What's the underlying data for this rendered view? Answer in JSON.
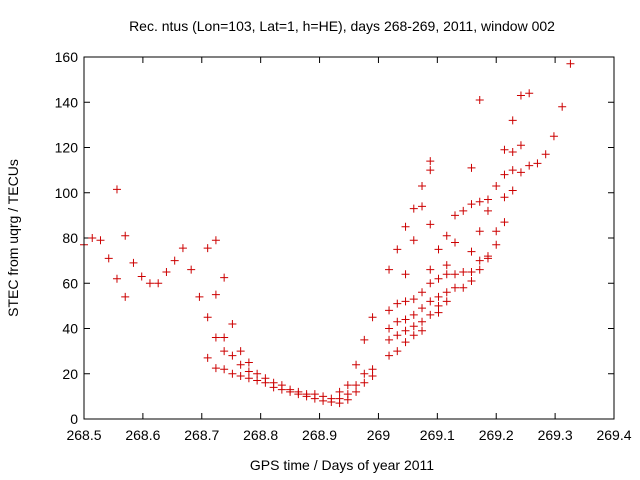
{
  "chart_data": {
    "type": "scatter",
    "title": "Rec. ntus (Lon=103, Lat=1, h=HE), days 268-269, 2011, window 002",
    "xlabel": "GPS time / Days of year 2011",
    "ylabel": "STEC from uqrg / TECUs",
    "xlim": [
      268.5,
      269.4
    ],
    "ylim": [
      0,
      160
    ],
    "xticks": [
      "268.5",
      "268.6",
      "268.7",
      "268.8",
      "268.9",
      "269",
      "269.1",
      "269.2",
      "269.3",
      "269.4"
    ],
    "yticks": [
      "0",
      "20",
      "40",
      "60",
      "80",
      "100",
      "120",
      "140",
      "160"
    ],
    "grid": false,
    "legend": "none",
    "marker": "+",
    "color": "#cc0000",
    "points": [
      [
        268.5,
        77.0
      ],
      [
        268.514,
        80.0
      ],
      [
        268.528,
        79.0
      ],
      [
        268.542,
        71.0
      ],
      [
        268.556,
        101.5
      ],
      [
        268.556,
        62.0
      ],
      [
        268.57,
        81.0
      ],
      [
        268.57,
        54.0
      ],
      [
        268.584,
        69.0
      ],
      [
        268.598,
        63.0
      ],
      [
        268.612,
        60.0
      ],
      [
        268.626,
        60.0
      ],
      [
        268.64,
        65.0
      ],
      [
        268.654,
        70.0
      ],
      [
        268.668,
        75.5
      ],
      [
        268.682,
        66.0
      ],
      [
        268.696,
        54.0
      ],
      [
        268.71,
        75.5
      ],
      [
        268.71,
        45.0
      ],
      [
        268.71,
        27.0
      ],
      [
        268.724,
        79.0
      ],
      [
        268.724,
        55.0
      ],
      [
        268.724,
        36.0
      ],
      [
        268.724,
        22.5
      ],
      [
        268.738,
        62.5
      ],
      [
        268.738,
        36.0
      ],
      [
        268.738,
        30.0
      ],
      [
        268.738,
        22.0
      ],
      [
        268.752,
        42.0
      ],
      [
        268.752,
        28.0
      ],
      [
        268.752,
        20.0
      ],
      [
        268.766,
        30.0
      ],
      [
        268.766,
        24.0
      ],
      [
        268.766,
        19.0
      ],
      [
        268.78,
        25.0
      ],
      [
        268.78,
        21.0
      ],
      [
        268.78,
        18.0
      ],
      [
        268.794,
        20.0
      ],
      [
        268.794,
        17.0
      ],
      [
        268.808,
        18.0
      ],
      [
        268.808,
        16.0
      ],
      [
        268.822,
        16.0
      ],
      [
        268.822,
        14.0
      ],
      [
        268.836,
        15.0
      ],
      [
        268.836,
        13.0
      ],
      [
        268.85,
        13.0
      ],
      [
        268.85,
        12.0
      ],
      [
        268.864,
        12.0
      ],
      [
        268.864,
        11.0
      ],
      [
        268.878,
        11.0
      ],
      [
        268.878,
        10.0
      ],
      [
        268.892,
        11.0
      ],
      [
        268.892,
        9.0
      ],
      [
        268.906,
        10.0
      ],
      [
        268.906,
        8.0
      ],
      [
        268.92,
        9.0
      ],
      [
        268.92,
        7.5
      ],
      [
        268.934,
        12.0
      ],
      [
        268.934,
        9.0
      ],
      [
        268.934,
        7.0
      ],
      [
        268.948,
        15.0
      ],
      [
        268.948,
        11.0
      ],
      [
        268.948,
        8.5
      ],
      [
        268.962,
        24.0
      ],
      [
        268.962,
        15.0
      ],
      [
        268.962,
        12.0
      ],
      [
        268.976,
        35.0
      ],
      [
        268.976,
        20.0
      ],
      [
        268.976,
        16.0
      ],
      [
        268.99,
        45.0
      ],
      [
        268.99,
        22.0
      ],
      [
        268.99,
        19.0
      ],
      [
        269.018,
        66.0
      ],
      [
        269.018,
        48.0
      ],
      [
        269.018,
        40.0
      ],
      [
        269.018,
        35.0
      ],
      [
        269.018,
        28.0
      ],
      [
        269.032,
        75.0
      ],
      [
        269.032,
        51.0
      ],
      [
        269.032,
        43.0
      ],
      [
        269.032,
        37.0
      ],
      [
        269.032,
        30.0
      ],
      [
        269.046,
        85.0
      ],
      [
        269.046,
        64.0
      ],
      [
        269.046,
        52.0
      ],
      [
        269.046,
        44.0
      ],
      [
        269.046,
        39.0
      ],
      [
        269.046,
        34.0
      ],
      [
        269.06,
        93.0
      ],
      [
        269.06,
        79.0
      ],
      [
        269.06,
        53.0
      ],
      [
        269.06,
        46.0
      ],
      [
        269.06,
        41.0
      ],
      [
        269.06,
        37.0
      ],
      [
        269.074,
        103.0
      ],
      [
        269.074,
        94.0
      ],
      [
        269.074,
        56.0
      ],
      [
        269.074,
        49.0
      ],
      [
        269.074,
        43.0
      ],
      [
        269.074,
        39.0
      ],
      [
        269.088,
        114.0
      ],
      [
        269.088,
        110.0
      ],
      [
        269.088,
        86.0
      ],
      [
        269.088,
        66.0
      ],
      [
        269.088,
        60.0
      ],
      [
        269.088,
        52.0
      ],
      [
        269.088,
        46.0
      ],
      [
        269.102,
        75.0
      ],
      [
        269.102,
        62.0
      ],
      [
        269.102,
        54.0
      ],
      [
        269.102,
        50.0
      ],
      [
        269.102,
        47.0
      ],
      [
        269.116,
        81.0
      ],
      [
        269.116,
        68.0
      ],
      [
        269.116,
        64.0
      ],
      [
        269.116,
        56.0
      ],
      [
        269.116,
        52.0
      ],
      [
        269.13,
        90.0
      ],
      [
        269.13,
        78.0
      ],
      [
        269.13,
        64.0
      ],
      [
        269.13,
        58.0
      ],
      [
        269.144,
        92.0
      ],
      [
        269.144,
        65.0
      ],
      [
        269.144,
        58.0
      ],
      [
        269.158,
        111.0
      ],
      [
        269.158,
        95.0
      ],
      [
        269.158,
        74.0
      ],
      [
        269.158,
        65.0
      ],
      [
        269.158,
        61.0
      ],
      [
        269.172,
        141.0
      ],
      [
        269.172,
        96.0
      ],
      [
        269.172,
        83.0
      ],
      [
        269.172,
        70.0
      ],
      [
        269.172,
        66.0
      ],
      [
        269.186,
        97.0
      ],
      [
        269.186,
        92.0
      ],
      [
        269.186,
        72.0
      ],
      [
        269.186,
        71.0
      ],
      [
        269.2,
        103.0
      ],
      [
        269.2,
        83.0
      ],
      [
        269.2,
        77.0
      ],
      [
        269.214,
        119.0
      ],
      [
        269.214,
        108.0
      ],
      [
        269.214,
        98.0
      ],
      [
        269.214,
        87.0
      ],
      [
        269.228,
        132.0
      ],
      [
        269.228,
        118.0
      ],
      [
        269.228,
        110.0
      ],
      [
        269.228,
        101.0
      ],
      [
        269.242,
        143.0
      ],
      [
        269.242,
        121.0
      ],
      [
        269.242,
        109.0
      ],
      [
        269.256,
        144.0
      ],
      [
        269.256,
        112.0
      ],
      [
        269.27,
        113.0
      ],
      [
        269.284,
        117.0
      ],
      [
        269.298,
        125.0
      ],
      [
        269.312,
        138.0
      ],
      [
        269.326,
        157.0
      ]
    ]
  }
}
